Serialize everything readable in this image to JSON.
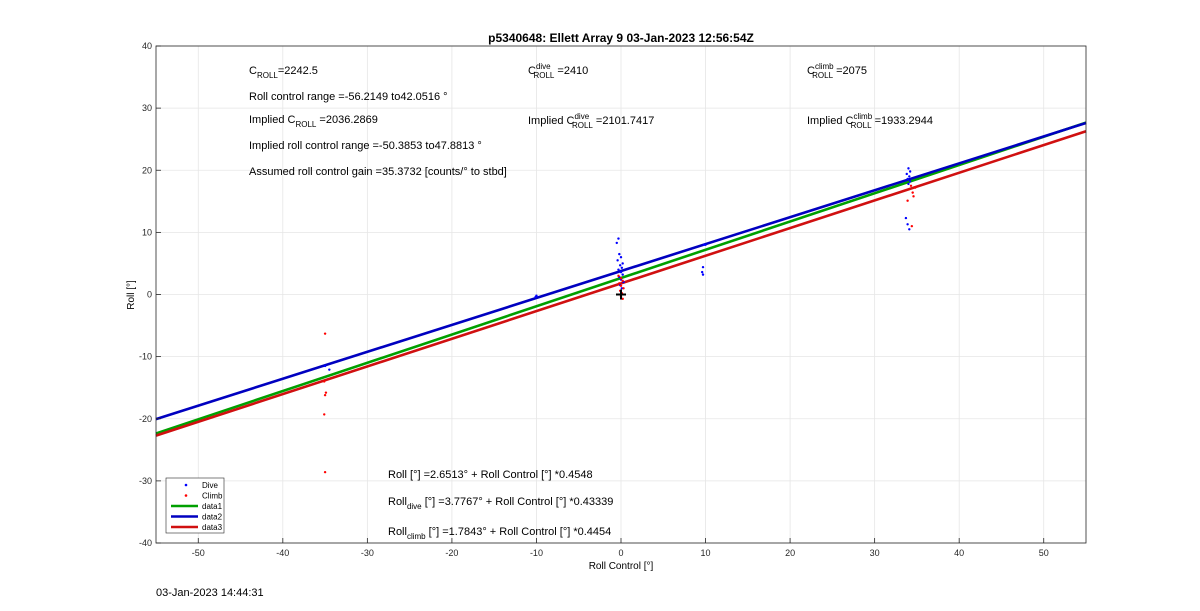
{
  "chart_data": {
    "type": "scatter",
    "title": "p5340648: Ellett Array 9 03-Jan-2023 12:56:54Z",
    "xlabel": "Roll Control [°]",
    "ylabel": "Roll [°]",
    "xlim": [
      -55,
      55
    ],
    "ylim": [
      -40,
      40
    ],
    "x_ticks": [
      -50,
      -40,
      -30,
      -20,
      -10,
      0,
      10,
      20,
      30,
      40,
      50
    ],
    "y_ticks": [
      -40,
      -30,
      -20,
      -10,
      0,
      10,
      20,
      30,
      40
    ],
    "grid": true,
    "legend_position": "bottom-left",
    "legend": [
      "Dive",
      "Climb",
      "data1",
      "data2",
      "data3"
    ],
    "colors": {
      "dive": "#0000ff",
      "climb": "#ff0000",
      "data1": "#00a000",
      "data2": "#0000c0",
      "data3": "#d01010",
      "marker": "#000000"
    },
    "series": [
      {
        "name": "Dive",
        "kind": "points",
        "color": "#0000ff",
        "points": [
          [
            -35,
            -11.5
          ],
          [
            -34.5,
            -12.1
          ],
          [
            -10,
            -0.2
          ],
          [
            -10.1,
            -0.4
          ],
          [
            -0.3,
            9
          ],
          [
            -0.5,
            8.3
          ],
          [
            -0.2,
            6.5
          ],
          [
            0,
            6
          ],
          [
            -0.4,
            5.5
          ],
          [
            0.2,
            5
          ],
          [
            -0.1,
            4.7
          ],
          [
            0.1,
            4.3
          ],
          [
            -0.3,
            4
          ],
          [
            0,
            3.6
          ],
          [
            0.2,
            3.2
          ],
          [
            -0.2,
            2.8
          ],
          [
            0,
            2.4
          ],
          [
            0.3,
            2
          ],
          [
            -0.1,
            1.5
          ],
          [
            0.1,
            1
          ],
          [
            9.7,
            4.4
          ],
          [
            9.6,
            3.6
          ],
          [
            9.7,
            3.2
          ],
          [
            9.8,
            8
          ],
          [
            10,
            8
          ],
          [
            34,
            20.3
          ],
          [
            34.2,
            19.8
          ],
          [
            33.8,
            19.4
          ],
          [
            34.1,
            19
          ],
          [
            33.9,
            18.6
          ],
          [
            34.2,
            18.2
          ],
          [
            34,
            17.8
          ],
          [
            33.7,
            12.3
          ],
          [
            33.9,
            11.3
          ],
          [
            34.1,
            10.5
          ]
        ]
      },
      {
        "name": "Climb",
        "kind": "points",
        "color": "#ff0000",
        "points": [
          [
            -35,
            -6.3
          ],
          [
            -35.1,
            -14
          ],
          [
            -34.9,
            -15.8
          ],
          [
            -35,
            -16.2
          ],
          [
            -35.1,
            -19.3
          ],
          [
            -35,
            -28.6
          ],
          [
            -0.3,
            3
          ],
          [
            0,
            2.6
          ],
          [
            0.2,
            2.2
          ],
          [
            -0.2,
            1.8
          ],
          [
            0,
            1.4
          ],
          [
            0.3,
            1
          ],
          [
            -0.1,
            0.6
          ],
          [
            0.1,
            0.2
          ],
          [
            0,
            -0.3
          ],
          [
            0.2,
            -0.7
          ],
          [
            34.3,
            17.5
          ],
          [
            34.8,
            17.2
          ],
          [
            34.5,
            16.4
          ],
          [
            33.9,
            15.1
          ],
          [
            34.6,
            15.8
          ],
          [
            34.4,
            11
          ]
        ]
      },
      {
        "name": "data1",
        "kind": "line",
        "color": "#00a000",
        "intercept": 2.6513,
        "slope": 0.4548
      },
      {
        "name": "data2",
        "kind": "line",
        "color": "#0000c0",
        "intercept": 3.7767,
        "slope": 0.43339
      },
      {
        "name": "data3",
        "kind": "line",
        "color": "#d01010",
        "intercept": 1.7843,
        "slope": 0.4454
      }
    ],
    "origin_marker": {
      "x": 0,
      "y": 0,
      "symbol": "+"
    }
  },
  "annotations_top": {
    "c_roll": {
      "base": "C",
      "sub": "ROLL",
      "value": "=2242.5"
    },
    "roll_range": "Roll control range =-56.2149 to42.0516 °",
    "implied_c_roll": {
      "prefix": "Implied C",
      "sub": "ROLL",
      "value": " =2036.2869"
    },
    "implied_range": "Implied roll control range =-50.3853 to47.8813 °",
    "assumed_gain": "Assumed roll control gain =35.3732 [counts/° to stbd]",
    "c_dive": {
      "base": "C",
      "sup": "dive",
      "sub": "ROLL",
      "value": " =2410"
    },
    "implied_c_dive": {
      "prefix": "Implied C",
      "sup": "dive",
      "sub": "ROLL",
      "value": " =2101.7417"
    },
    "c_climb": {
      "base": "C",
      "sup": "climb",
      "sub": "ROLL",
      "value": " =2075"
    },
    "implied_c_climb": {
      "prefix": "Implied C",
      "sup": "climb",
      "sub": "ROLL",
      "value": " =1933.2944"
    }
  },
  "annotations_bottom": {
    "fit_all": {
      "base": "Roll",
      "sub": "",
      "value": " [°] =2.6513° + Roll Control [°] *0.4548"
    },
    "fit_dive": {
      "base": "Roll",
      "sub": "dive",
      "value": " [°] =3.7767° + Roll Control [°] *0.43339"
    },
    "fit_climb": {
      "base": "Roll",
      "sub": "climb",
      "value": " [°] =1.7843° + Roll Control [°] *0.4454"
    }
  },
  "footer": {
    "timestamp": "03-Jan-2023 14:44:31"
  }
}
